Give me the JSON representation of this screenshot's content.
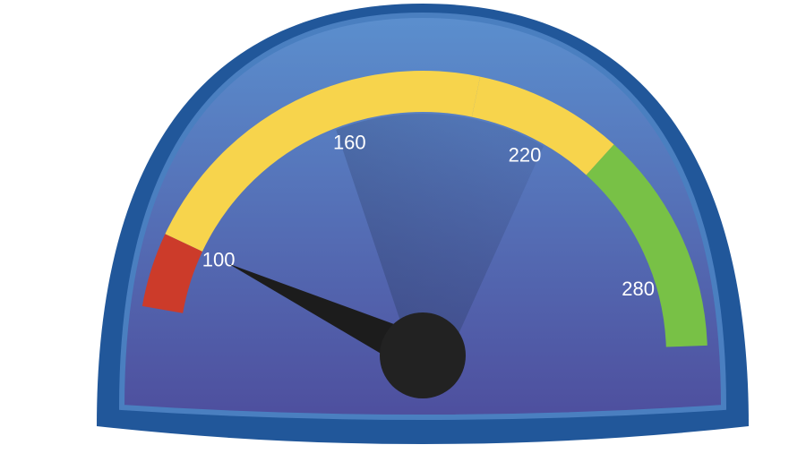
{
  "chart_data": {
    "type": "gauge",
    "value": 100,
    "scale": {
      "min": 80,
      "max": 300
    },
    "ticks": [
      {
        "value": 100,
        "label": "100"
      },
      {
        "value": 160,
        "label": "160"
      },
      {
        "value": 220,
        "label": "220"
      },
      {
        "value": 280,
        "label": "280"
      }
    ],
    "bands": [
      {
        "from": 80,
        "to": 100,
        "color": "#cc3b2a"
      },
      {
        "from": 100,
        "to": 200,
        "color": "#f7d44c"
      },
      {
        "from": 200,
        "to": 240,
        "color": "#f7d44c"
      },
      {
        "from": 240,
        "to": 300,
        "color": "#78c146"
      }
    ],
    "colors": {
      "frame": "#21579a",
      "face_top": "#5b8fce",
      "face_bottom": "#4e4f9e",
      "needle": "#1c1c1c",
      "hub": "#222222",
      "sweep": "#2d3f6a"
    }
  }
}
